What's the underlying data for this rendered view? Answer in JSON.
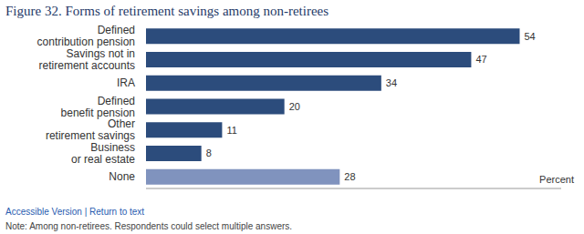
{
  "chart_data": {
    "type": "bar",
    "orientation": "horizontal",
    "title": "Figure 32. Forms of retirement savings among non-retirees",
    "categories": [
      "Defined contribution pension",
      "Savings not in retirement accounts",
      "IRA",
      "Defined benefit pension",
      "Other retirement savings",
      "Business or real estate",
      "None"
    ],
    "values": [
      54,
      47,
      34,
      20,
      11,
      8,
      28
    ],
    "colors": [
      "#2c4c7c",
      "#2c4c7c",
      "#2c4c7c",
      "#2c4c7c",
      "#2c4c7c",
      "#2c4c7c",
      "#8093be"
    ],
    "x_label": "Percent",
    "xlim": [
      0,
      60
    ],
    "tick_labels": "y",
    "data_labels": true,
    "grid": false,
    "annotations": [
      "Accessible Version | Return to text",
      "Note: Among non-retirees. Respondents could select multiple answers."
    ]
  }
}
